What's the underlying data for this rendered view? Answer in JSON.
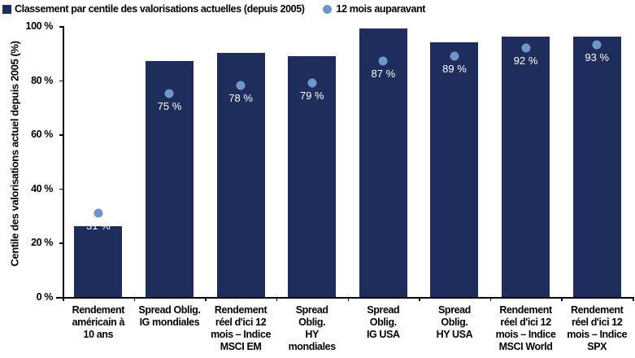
{
  "legend": {
    "series1": "Classement par centile des valorisations actuelles (depuis 2005)",
    "series2": "12 mois auparavant"
  },
  "colors": {
    "bar": "#1f2d5c",
    "dot": "#6f96c8"
  },
  "chart_data": {
    "type": "bar",
    "title": "",
    "xlabel": "",
    "ylabel": "Centile des valorisations actuel depuis 2005 (%)",
    "ylim": [
      0,
      100
    ],
    "yticks": [
      "0 %",
      "20 %",
      "40 %",
      "60 %",
      "80 %",
      "100 %"
    ],
    "grid": false,
    "legend_position": "top-left",
    "categories": [
      "Rendement américain à 10 ans",
      "Spread Oblig. IG mondiales",
      "Rendement réel d'ici 12 mois – Indice MSCI EM",
      "Spread Oblig. HY mondiales",
      "Spread Oblig. IG USA",
      "Spread Oblig. HY USA",
      "Rendement réel d'ici 12 mois – Indice MSCI World",
      "Rendement réel d'ici 12 mois – Indice SPX"
    ],
    "series": [
      {
        "name": "Classement par centile des valorisations actuelles (depuis 2005)",
        "type": "bar",
        "values": [
          26,
          87,
          90,
          89,
          99,
          94,
          96,
          96
        ]
      },
      {
        "name": "12 mois auparavant",
        "type": "scatter",
        "values": [
          31,
          75,
          78,
          79,
          87,
          89,
          92,
          93
        ],
        "labels": [
          "31 %",
          "75 %",
          "78 %",
          "79 %",
          "87 %",
          "89 %",
          "92 %",
          "93 %"
        ]
      }
    ]
  },
  "xlabels": [
    [
      "Rendement",
      "américain à",
      "10 ans"
    ],
    [
      "Spread Oblig.",
      "IG mondiales"
    ],
    [
      "Rendement",
      "réel d'ici 12",
      "mois – Indice",
      "MSCI EM"
    ],
    [
      "Spread",
      "Oblig.",
      "HY",
      "mondiales"
    ],
    [
      "Spread",
      "Oblig.",
      "IG USA"
    ],
    [
      "Spread",
      "Oblig.",
      "HY USA"
    ],
    [
      "Rendement",
      "réel d'ici 12",
      "mois – Indice",
      "MSCI World"
    ],
    [
      "Rendement",
      "réel d'ici 12",
      "mois – Indice",
      "SPX"
    ]
  ]
}
